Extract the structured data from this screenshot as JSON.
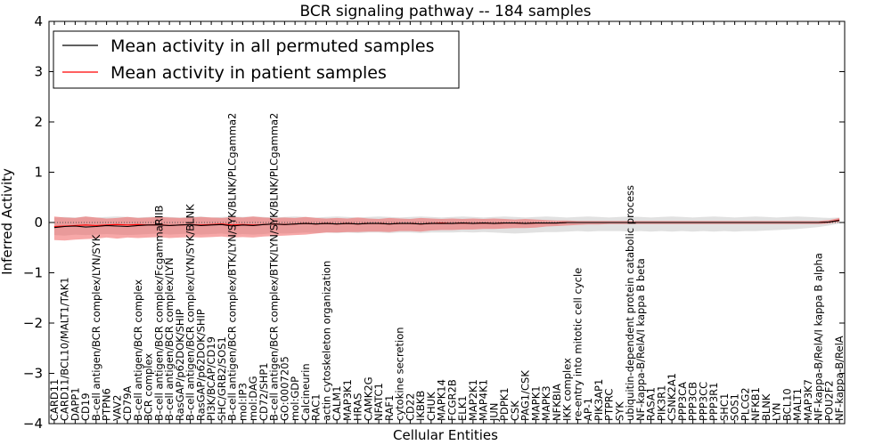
{
  "chart_data": {
    "type": "line",
    "title": "BCR signaling pathway -- 184 samples",
    "xlabel": "Cellular Entities",
    "ylabel": "Inferred Activity",
    "ylim": [
      -4,
      4
    ],
    "yticks": [
      -4,
      -3,
      -2,
      -1,
      0,
      1,
      2,
      3,
      4
    ],
    "ytick_labels": [
      "−4",
      "−3",
      "−2",
      "−1",
      "0",
      "1",
      "2",
      "3",
      "4"
    ],
    "grid": false,
    "legend": {
      "position": "top-left",
      "entries": [
        {
          "label": "Mean activity in all permuted samples",
          "color": "#000000"
        },
        {
          "label": "Mean activity in patient samples",
          "color": "#ff0000"
        }
      ]
    },
    "categories": [
      "CARD11",
      "CARD11/BCL10/MALT1/TAK1",
      "DAPP1",
      "CD19",
      "B-cell antigen/BCR complex/LYN/SYK",
      "PTPN6",
      "VAV2",
      "CD79A",
      "B-cell antigen/BCR complex",
      "BCR complex",
      "B-cell antigen/BCR complex/FcgammaRIIB",
      "B-cell antigen/BCR complex/LYN",
      "RasGAP/p62DOK/SHIP",
      "B-cell antigen/BCR complex/LYN/SYK/BLNK",
      "RasGAP/p62DOK/SHIP",
      "PI3K/BCAP/CD19",
      "SHC/GRB2/SOS1",
      "B-cell antigen/BCR complex/BTK/LYN/SYK/BLNK/PLCgamma2",
      "mol:IP3",
      "mol:DAG",
      "CD72/SHP1",
      "B-cell antigen/BCR complex/BTK/LYN/SYK/BLNK/PLCgamma2",
      "GO:0007205",
      "mol:GDP",
      "Calcineurin",
      "RAC1",
      "actin cytoskeleton organization",
      "CALM1",
      "MAP3K1",
      "HRAS",
      "CAMK2G",
      "NFATC1",
      "RAF1",
      "cytokine secretion",
      "CD22",
      "IKBKB",
      "CHUK",
      "MAPK14",
      "FCGR2B",
      "ELK1",
      "MAP2K1",
      "MAP4K1",
      "JUN",
      "PDPK1",
      "CSK",
      "PAG1/CSK",
      "MAPK1",
      "MAPK3",
      "NFKBIA",
      "IKK complex",
      "re-entry into mitotic cell cycle",
      "AP-1",
      "PIK3AP1",
      "PTPRC",
      "SYK",
      "ubiquitin-dependent protein catabolic process",
      "NF-kappa-B/RelA/I kappa B beta",
      "RASA1",
      "PIK3R1",
      "CSNK2A1",
      "PPP3CA",
      "PPP3CB",
      "PPP3CC",
      "PPP3R1",
      "SHC1",
      "SOS1",
      "PLCG2",
      "NFKB1",
      "BLNK",
      "LYN",
      "BCL10",
      "MALT1",
      "MAP3K7",
      "NF-kappa-B/RelA/I kappa B alpha",
      "POU2F2",
      "NF-kappa-B/RelA"
    ],
    "series": [
      {
        "name": "Mean activity in patient samples",
        "color": "#ff0000",
        "values": [
          -0.08,
          -0.07,
          -0.06,
          -0.05,
          -0.06,
          -0.05,
          -0.04,
          -0.05,
          -0.04,
          -0.05,
          -0.04,
          -0.06,
          -0.05,
          -0.04,
          -0.05,
          -0.04,
          -0.03,
          -0.05,
          -0.04,
          -0.05,
          -0.04,
          -0.03,
          -0.04,
          -0.03,
          -0.02,
          -0.03,
          -0.02,
          -0.03,
          -0.02,
          -0.03,
          -0.02,
          -0.02,
          -0.03,
          -0.02,
          -0.02,
          -0.03,
          -0.02,
          -0.01,
          -0.02,
          -0.01,
          -0.02,
          -0.01,
          -0.02,
          -0.01,
          -0.01,
          -0.02,
          -0.01,
          -0.01,
          -0.01,
          0.0,
          0.0,
          0.0,
          0.0,
          0.0,
          0.0,
          0.0,
          0.0,
          0.0,
          0.0,
          0.0,
          0.0,
          0.0,
          0.0,
          0.0,
          0.0,
          0.0,
          0.0,
          0.0,
          0.0,
          0.0,
          0.0,
          0.0,
          0.0,
          0.0,
          0.01,
          0.05
        ],
        "lower": [
          -0.35,
          -0.36,
          -0.34,
          -0.33,
          -0.32,
          -0.3,
          -0.32,
          -0.3,
          -0.31,
          -0.3,
          -0.29,
          -0.31,
          -0.3,
          -0.29,
          -0.3,
          -0.29,
          -0.28,
          -0.3,
          -0.29,
          -0.3,
          -0.28,
          -0.27,
          -0.26,
          -0.25,
          -0.24,
          -0.22,
          -0.2,
          -0.2,
          -0.19,
          -0.19,
          -0.18,
          -0.18,
          -0.19,
          -0.17,
          -0.17,
          -0.18,
          -0.16,
          -0.15,
          -0.15,
          -0.14,
          -0.14,
          -0.13,
          -0.13,
          -0.12,
          -0.11,
          -0.11,
          -0.1,
          -0.08,
          -0.07,
          -0.06,
          -0.05,
          -0.04,
          -0.04,
          -0.03,
          -0.03,
          -0.03,
          -0.03,
          -0.03,
          -0.03,
          -0.03,
          -0.03,
          -0.03,
          -0.03,
          -0.03,
          -0.03,
          -0.03,
          -0.03,
          -0.03,
          -0.03,
          -0.03,
          -0.03,
          -0.03,
          -0.03,
          -0.03,
          -0.02,
          0.01
        ],
        "upper": [
          0.12,
          0.1,
          0.09,
          0.12,
          0.1,
          0.08,
          0.09,
          0.11,
          0.09,
          0.1,
          0.11,
          0.1,
          0.09,
          0.1,
          0.11,
          0.1,
          0.09,
          0.11,
          0.1,
          0.12,
          0.1,
          0.09,
          0.1,
          0.09,
          0.11,
          0.09,
          0.08,
          0.09,
          0.08,
          0.1,
          0.08,
          0.07,
          0.09,
          0.08,
          0.07,
          0.09,
          0.08,
          0.07,
          0.08,
          0.07,
          0.08,
          0.07,
          0.08,
          0.07,
          0.06,
          0.07,
          0.06,
          0.05,
          0.04,
          0.04,
          0.03,
          0.03,
          0.03,
          0.03,
          0.03,
          0.03,
          0.03,
          0.03,
          0.03,
          0.03,
          0.03,
          0.03,
          0.03,
          0.03,
          0.03,
          0.03,
          0.03,
          0.03,
          0.03,
          0.03,
          0.03,
          0.03,
          0.03,
          0.03,
          0.05,
          0.09
        ]
      },
      {
        "name": "Mean activity in all permuted samples",
        "color": "#000000",
        "values": [
          -0.1,
          -0.08,
          -0.07,
          -0.09,
          -0.08,
          -0.06,
          -0.07,
          -0.08,
          -0.06,
          -0.05,
          -0.05,
          -0.06,
          -0.05,
          -0.04,
          -0.06,
          -0.05,
          -0.04,
          -0.07,
          -0.05,
          -0.06,
          -0.04,
          -0.03,
          -0.04,
          -0.03,
          -0.02,
          -0.03,
          -0.02,
          -0.03,
          -0.02,
          -0.03,
          -0.02,
          -0.02,
          -0.03,
          -0.02,
          -0.02,
          -0.03,
          -0.02,
          -0.02,
          -0.02,
          -0.01,
          -0.02,
          -0.01,
          -0.02,
          -0.01,
          -0.01,
          -0.02,
          -0.01,
          -0.01,
          -0.01,
          0.0,
          0.0,
          0.0,
          0.0,
          0.0,
          0.0,
          0.0,
          0.0,
          0.0,
          0.0,
          0.0,
          0.0,
          0.0,
          0.0,
          0.0,
          0.0,
          0.0,
          0.0,
          0.0,
          0.0,
          0.0,
          0.0,
          0.0,
          0.0,
          0.0,
          0.01,
          0.04
        ],
        "lower": [
          -0.25,
          -0.26,
          -0.24,
          -0.25,
          -0.24,
          -0.23,
          -0.24,
          -0.25,
          -0.24,
          -0.23,
          -0.22,
          -0.24,
          -0.23,
          -0.22,
          -0.24,
          -0.23,
          -0.22,
          -0.25,
          -0.23,
          -0.24,
          -0.23,
          -0.21,
          -0.22,
          -0.21,
          -0.2,
          -0.21,
          -0.2,
          -0.21,
          -0.2,
          -0.21,
          -0.2,
          -0.2,
          -0.21,
          -0.2,
          -0.2,
          -0.21,
          -0.2,
          -0.2,
          -0.2,
          -0.19,
          -0.2,
          -0.19,
          -0.2,
          -0.21,
          -0.22,
          -0.21,
          -0.2,
          -0.19,
          -0.19,
          -0.18,
          -0.17,
          -0.18,
          -0.17,
          -0.17,
          -0.17,
          -0.18,
          -0.17,
          -0.18,
          -0.17,
          -0.18,
          -0.17,
          -0.18,
          -0.17,
          -0.18,
          -0.17,
          -0.18,
          -0.17,
          -0.17,
          -0.16,
          -0.15,
          -0.14,
          -0.13,
          -0.11,
          -0.09,
          -0.06,
          -0.02
        ],
        "upper": [
          0.1,
          0.11,
          0.1,
          0.12,
          0.1,
          0.11,
          0.12,
          0.11,
          0.1,
          0.11,
          0.12,
          0.11,
          0.1,
          0.11,
          0.12,
          0.1,
          0.11,
          0.12,
          0.11,
          0.12,
          0.11,
          0.1,
          0.11,
          0.12,
          0.11,
          0.1,
          0.11,
          0.12,
          0.11,
          0.1,
          0.11,
          0.12,
          0.11,
          0.1,
          0.11,
          0.12,
          0.11,
          0.1,
          0.11,
          0.12,
          0.11,
          0.1,
          0.11,
          0.12,
          0.11,
          0.1,
          0.11,
          0.12,
          0.11,
          0.1,
          0.11,
          0.12,
          0.11,
          0.1,
          0.11,
          0.12,
          0.11,
          0.1,
          0.11,
          0.12,
          0.11,
          0.1,
          0.11,
          0.12,
          0.11,
          0.1,
          0.11,
          0.12,
          0.11,
          0.1,
          0.11,
          0.12,
          0.11,
          0.1,
          0.09,
          0.1
        ]
      }
    ]
  }
}
